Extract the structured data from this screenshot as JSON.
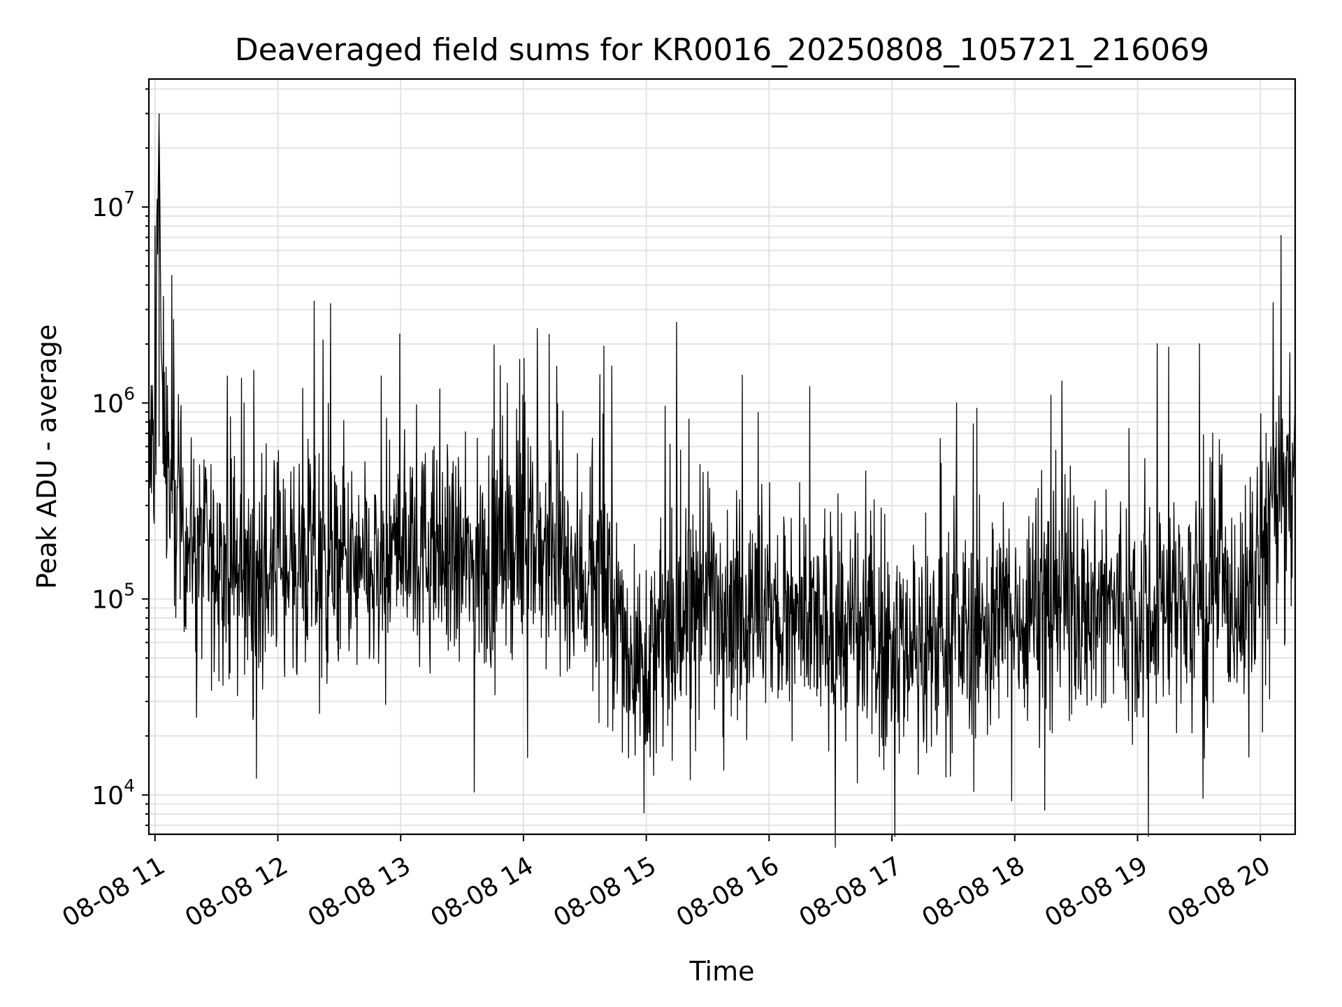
{
  "chart_data": {
    "type": "line",
    "title": "Deaveraged field sums for KR0016_20250808_105721_216069",
    "xlabel": "Time",
    "ylabel": "Peak ADU - average",
    "x_ticks": [
      "08-08 11",
      "08-08 12",
      "08-08 13",
      "08-08 14",
      "08-08 15",
      "08-08 16",
      "08-08 17",
      "08-08 18",
      "08-08 19",
      "08-08 20"
    ],
    "x_range": [
      "2025-08-08 10:57",
      "2025-08-08 20:17"
    ],
    "y_scale": "log",
    "y_range": [
      6300,
      45000000
    ],
    "y_ticks": [
      {
        "value": 10000,
        "base": "10",
        "exp": "4"
      },
      {
        "value": 100000,
        "base": "10",
        "exp": "5"
      },
      {
        "value": 1000000,
        "base": "10",
        "exp": "6"
      },
      {
        "value": 10000000,
        "base": "10",
        "exp": "7"
      }
    ],
    "grid": true,
    "line_color": "#000000",
    "series": [
      {
        "x": [
          "2025-08-08 10:57",
          "2025-08-08 11:00",
          "2025-08-08 11:02",
          "2025-08-08 11:03",
          "2025-08-08 11:07",
          "2025-08-08 11:20",
          "2025-08-08 11:30",
          "2025-08-08 11:40",
          "2025-08-08 11:50",
          "2025-08-08 12:00",
          "2025-08-08 12:20",
          "2025-08-08 12:40",
          "2025-08-08 12:50",
          "2025-08-08 13:00",
          "2025-08-08 13:20",
          "2025-08-08 13:40",
          "2025-08-08 13:50",
          "2025-08-08 14:00",
          "2025-08-08 14:20",
          "2025-08-08 14:40",
          "2025-08-08 14:50",
          "2025-08-08 15:00",
          "2025-08-08 15:15",
          "2025-08-08 15:30",
          "2025-08-08 15:45",
          "2025-08-08 16:00",
          "2025-08-08 16:20",
          "2025-08-08 16:40",
          "2025-08-08 17:00",
          "2025-08-08 17:20",
          "2025-08-08 17:40",
          "2025-08-08 18:00",
          "2025-08-08 18:20",
          "2025-08-08 18:40",
          "2025-08-08 19:00",
          "2025-08-08 19:20",
          "2025-08-08 19:40",
          "2025-08-08 19:55",
          "2025-08-08 20:05",
          "2025-08-08 20:17"
        ],
        "y": [
          500000,
          600000,
          30000000,
          1800000,
          350000,
          180000,
          150000,
          140000,
          120000,
          160000,
          150000,
          130000,
          120000,
          200000,
          160000,
          140000,
          180000,
          200000,
          150000,
          110000,
          60000,
          45000,
          70000,
          120000,
          90000,
          80000,
          70000,
          65000,
          60000,
          60000,
          70000,
          80000,
          120000,
          90000,
          90000,
          100000,
          100000,
          90000,
          300000,
          400000
        ]
      }
    ]
  }
}
